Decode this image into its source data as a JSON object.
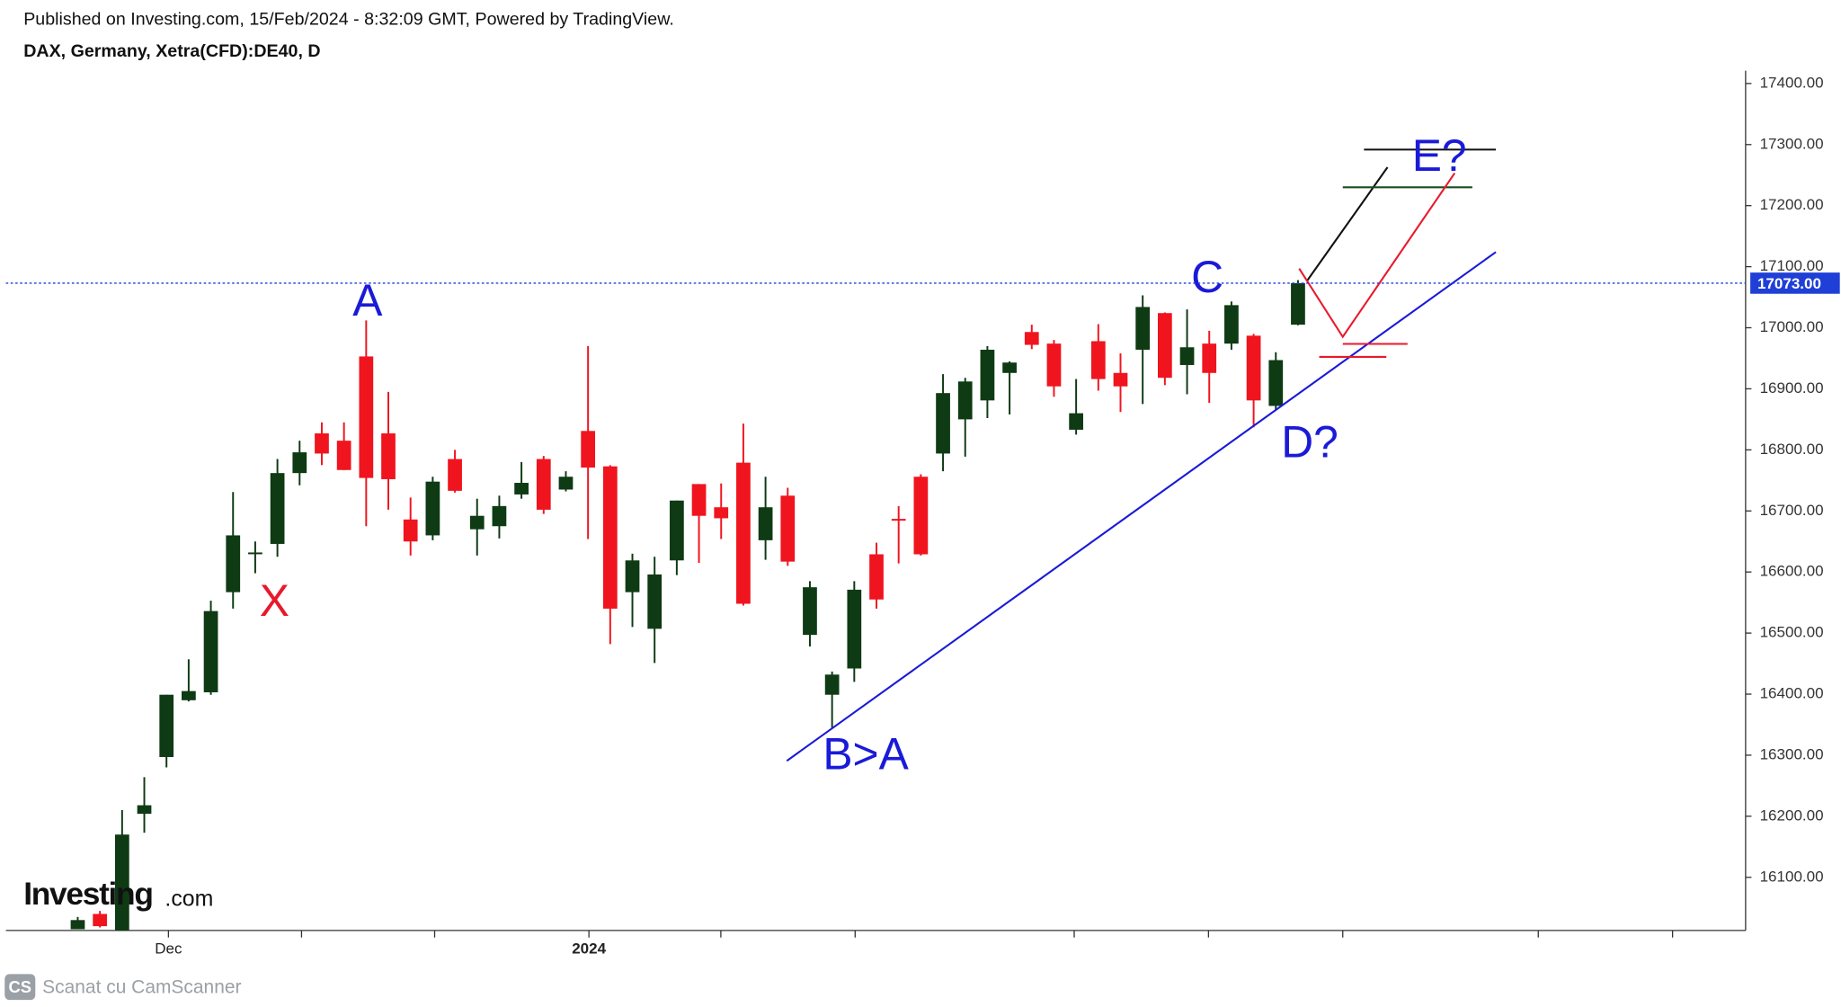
{
  "header": {
    "published": "Published on Investing.com, 15/Feb/2024 - 8:32:09 GMT, Powered by TradingView.",
    "symbol": "DAX, Germany, Xetra(CFD):DE40, D"
  },
  "watermark": {
    "brand": "Investing",
    "suffix": ".com"
  },
  "footer": {
    "badge": "CS",
    "text": "Scanat cu CamScanner"
  },
  "chart_data": {
    "type": "candlestick",
    "up_color": "#0e3a14",
    "down_color": "#f0141e",
    "open": [
      16015,
      16040,
      16000,
      16204,
      16297,
      16390,
      16403,
      16567,
      16630,
      16646,
      16762,
      16827,
      16815,
      16953,
      16827,
      16686,
      16660,
      16785,
      16670,
      16675,
      16727,
      16785,
      16735,
      16831,
      16773,
      16567,
      16507,
      16619,
      16744,
      16706,
      16779,
      16652,
      16725,
      16497,
      16399,
      16442,
      16629,
      16687,
      16756,
      16794,
      16850,
      16881,
      16926,
      16993,
      16974,
      16833,
      16978,
      16926,
      16964,
      17024,
      16939,
      16974,
      16974,
      16987,
      16872,
      17005
    ],
    "high": [
      16035,
      16045,
      16210,
      16264,
      16399,
      16457,
      16553,
      16731,
      16650,
      16785,
      16815,
      16845,
      16845,
      17012,
      16895,
      16722,
      16756,
      16800,
      16720,
      16725,
      16780,
      16790,
      16765,
      16970,
      16775,
      16630,
      16625,
      16717,
      16744,
      16745,
      16843,
      16756,
      16738,
      16585,
      16437,
      16585,
      16648,
      16708,
      16760,
      16924,
      16918,
      16970,
      16945,
      17005,
      16980,
      16916,
      17006,
      16958,
      17053,
      17025,
      17030,
      16995,
      17043,
      16990,
      16960,
      17078
    ],
    "low": [
      16015,
      16018,
      16010,
      16173,
      16280,
      16388,
      16399,
      16540,
      16598,
      16625,
      16742,
      16775,
      16767,
      16675,
      16702,
      16627,
      16652,
      16730,
      16627,
      16655,
      16720,
      16695,
      16732,
      16654,
      16482,
      16510,
      16451,
      16595,
      16615,
      16654,
      16545,
      16620,
      16610,
      16478,
      16345,
      16420,
      16540,
      16614,
      16627,
      16765,
      16789,
      16852,
      16858,
      16965,
      16887,
      16825,
      16897,
      16862,
      16875,
      16906,
      16891,
      16877,
      16964,
      16837,
      16866,
      17004
    ],
    "close": [
      16030,
      16020,
      16170,
      16218,
      16399,
      16405,
      16536,
      16660,
      16632,
      16762,
      16796,
      16794,
      16767,
      16754,
      16752,
      16650,
      16748,
      16733,
      16692,
      16708,
      16746,
      16702,
      16756,
      16771,
      16540,
      16619,
      16596,
      16717,
      16692,
      16688,
      16548,
      16706,
      16617,
      16575,
      16432,
      16571,
      16555,
      16685,
      16629,
      16893,
      16912,
      16964,
      16943,
      16972,
      16904,
      16860,
      16916,
      16904,
      17034,
      16918,
      16968,
      16926,
      17037,
      16881,
      16947,
      17073
    ],
    "ylim": [
      16013,
      17421
    ],
    "yticks": [
      {
        "value": 16100,
        "label": "16100.00"
      },
      {
        "value": 16200,
        "label": "16200.00"
      },
      {
        "value": 16300,
        "label": "16300.00"
      },
      {
        "value": 16400,
        "label": "16400.00"
      },
      {
        "value": 16500,
        "label": "16500.00"
      },
      {
        "value": 16600,
        "label": "16600.00"
      },
      {
        "value": 16700,
        "label": "16700.00"
      },
      {
        "value": 16800,
        "label": "16800.00"
      },
      {
        "value": 16900,
        "label": "16900.00"
      },
      {
        "value": 17000,
        "label": "17000.00"
      },
      {
        "value": 17100,
        "label": "17100.00"
      },
      {
        "value": 17200,
        "label": "17200.00"
      },
      {
        "value": 17300,
        "label": "17300.00"
      },
      {
        "value": 17400,
        "label": "17400.00"
      }
    ],
    "x_labels": [
      "Dec",
      "2024"
    ],
    "last_price": {
      "value": 17073,
      "label": "17073.00",
      "color": "#1f3fd6"
    },
    "annotations": [
      {
        "text": "A",
        "color": "#1a1ad8"
      },
      {
        "text": "X",
        "color": "#e8192c"
      },
      {
        "text": "B>A",
        "color": "#1a1ad8"
      },
      {
        "text": "C",
        "color": "#1a1ad8"
      },
      {
        "text": "D?",
        "color": "#1a1ad8"
      },
      {
        "text": "E?",
        "color": "#1a1ad8"
      }
    ]
  }
}
